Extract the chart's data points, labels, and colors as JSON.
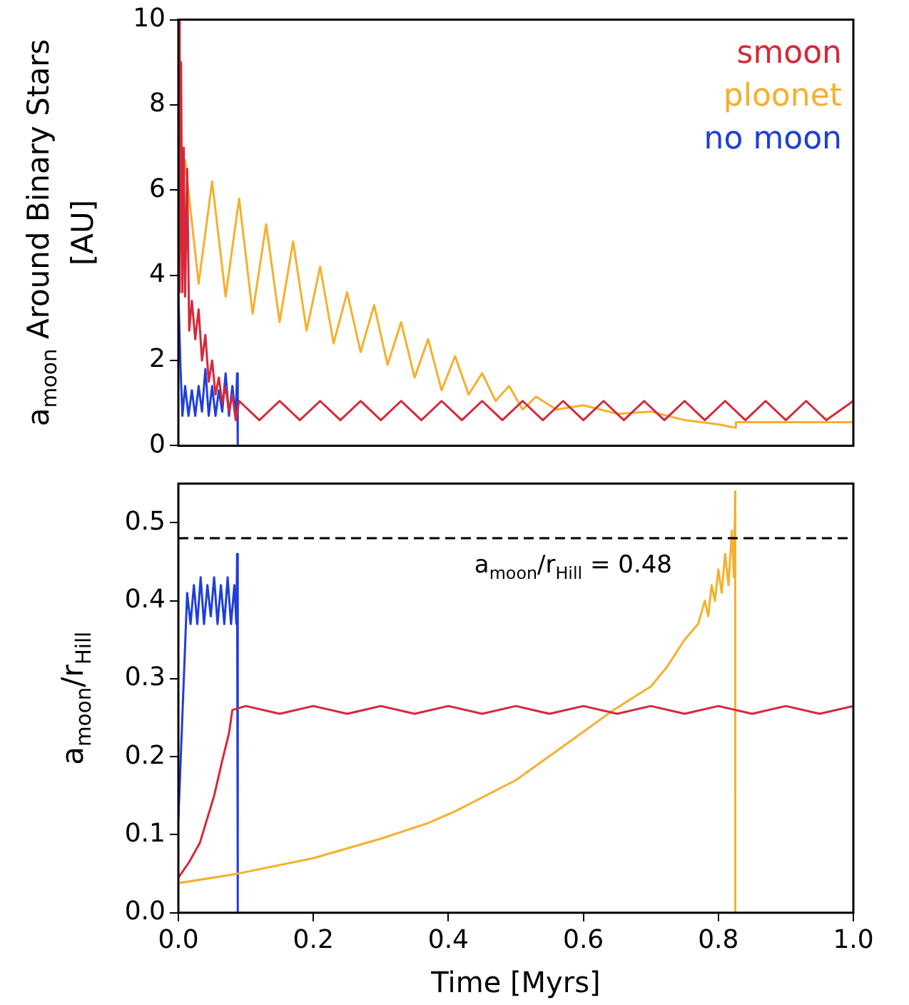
{
  "chart_data": [
    {
      "type": "line",
      "ylabel": "a$_{moon}$ Around Binary Stars [AU]",
      "xlim": [
        0,
        1
      ],
      "ylim": [
        0,
        10
      ],
      "yticks": [
        0,
        2,
        4,
        6,
        8,
        10
      ],
      "tick_labels": "y",
      "grid": false,
      "legend": "top right",
      "series": [
        {
          "name": "smoon",
          "color": "#d62839",
          "x": [
            0,
            0.002,
            0.004,
            0.006,
            0.008,
            0.01,
            0.013,
            0.016,
            0.02,
            0.025,
            0.03,
            0.035,
            0.04,
            0.045,
            0.05,
            0.055,
            0.06,
            0.065,
            0.07,
            0.075,
            0.08,
            0.085,
            0.09,
            0.12,
            0.15,
            0.18,
            0.21,
            0.24,
            0.27,
            0.3,
            0.33,
            0.36,
            0.39,
            0.42,
            0.45,
            0.48,
            0.51,
            0.54,
            0.57,
            0.6,
            0.63,
            0.66,
            0.69,
            0.72,
            0.75,
            0.78,
            0.81,
            0.84,
            0.87,
            0.9,
            0.93,
            0.96,
            1.0
          ],
          "values": [
            10,
            3.6,
            9,
            3.6,
            7,
            3.5,
            6.5,
            2.7,
            3.4,
            2.5,
            3.2,
            2.0,
            2.6,
            1.5,
            2.0,
            1.2,
            1.6,
            1.0,
            1.4,
            0.8,
            1.2,
            0.6,
            1.05,
            0.6,
            1.05,
            0.6,
            1.05,
            0.6,
            1.05,
            0.6,
            1.05,
            0.6,
            1.05,
            0.6,
            1.05,
            0.6,
            1.05,
            0.6,
            1.05,
            0.6,
            1.05,
            0.6,
            1.05,
            0.6,
            1.05,
            0.6,
            1.05,
            0.6,
            1.05,
            0.6,
            1.05,
            0.6,
            1.05
          ]
        },
        {
          "name": "ploonet",
          "color": "#f5b02e",
          "x": [
            0,
            0.01,
            0.03,
            0.05,
            0.07,
            0.09,
            0.11,
            0.13,
            0.15,
            0.17,
            0.19,
            0.21,
            0.23,
            0.25,
            0.27,
            0.29,
            0.31,
            0.33,
            0.35,
            0.37,
            0.39,
            0.41,
            0.43,
            0.45,
            0.47,
            0.49,
            0.51,
            0.53,
            0.56,
            0.6,
            0.65,
            0.7,
            0.75,
            0.8,
            0.825,
            0.826,
            1.0
          ],
          "values": [
            4.0,
            6.7,
            3.8,
            6.2,
            3.5,
            5.8,
            3.1,
            5.2,
            2.9,
            4.8,
            2.7,
            4.2,
            2.4,
            3.6,
            2.2,
            3.3,
            1.9,
            2.9,
            1.6,
            2.5,
            1.3,
            2.1,
            1.2,
            1.7,
            1.05,
            1.4,
            0.85,
            1.15,
            0.85,
            0.95,
            0.75,
            0.8,
            0.6,
            0.5,
            0.42,
            0.55,
            0.55
          ]
        },
        {
          "name": "no moon",
          "color": "#1f3fd8",
          "x": [
            0,
            0.003,
            0.006,
            0.01,
            0.015,
            0.02,
            0.025,
            0.03,
            0.035,
            0.04,
            0.045,
            0.05,
            0.055,
            0.06,
            0.065,
            0.07,
            0.075,
            0.08,
            0.085,
            0.087,
            0.088
          ],
          "values": [
            3.6,
            1.9,
            0.7,
            1.4,
            0.7,
            1.3,
            0.7,
            1.4,
            0.8,
            1.8,
            0.7,
            1.4,
            0.7,
            1.3,
            0.8,
            1.7,
            0.7,
            1.4,
            0.7,
            1.7,
            0
          ]
        }
      ]
    },
    {
      "type": "line",
      "xlabel": "Time [Myrs]",
      "ylabel": "a$_{moon}$/r$_{Hill}$",
      "xlim": [
        0,
        1
      ],
      "xticks": [
        {
          "value": 0,
          "label": "0.0"
        },
        {
          "value": 0.2,
          "label": "0.2"
        },
        {
          "value": 0.4,
          "label": "0.4"
        },
        {
          "value": 0.6,
          "label": "0.6"
        },
        {
          "value": 0.8,
          "label": "0.8"
        },
        {
          "value": 1,
          "label": "1.0"
        }
      ],
      "ylim": [
        0,
        0.55
      ],
      "yticks": [
        {
          "value": 0,
          "label": "0.0"
        },
        {
          "value": 0.1,
          "label": "0.1"
        },
        {
          "value": 0.2,
          "label": "0.2"
        },
        {
          "value": 0.3,
          "label": "0.3"
        },
        {
          "value": 0.4,
          "label": "0.4"
        },
        {
          "value": 0.5,
          "label": "0.5"
        }
      ],
      "grid": false,
      "ref_lines": [
        {
          "axis": "y",
          "value": 0.48,
          "label": "a$_{moon}$/r$_{Hill}$ = 0.48",
          "color": "#000000",
          "line_style": "dashed"
        }
      ],
      "series": [
        {
          "color": "#d62839",
          "x": [
            0,
            0.016,
            0.032,
            0.053,
            0.065,
            0.075,
            0.08,
            0.1,
            0.15,
            0.2,
            0.25,
            0.3,
            0.35,
            0.4,
            0.45,
            0.5,
            0.55,
            0.6,
            0.65,
            0.7,
            0.75,
            0.8,
            0.85,
            0.9,
            0.95,
            1.0
          ],
          "values": [
            0.045,
            0.065,
            0.09,
            0.15,
            0.195,
            0.23,
            0.26,
            0.265,
            0.255,
            0.265,
            0.255,
            0.265,
            0.255,
            0.265,
            0.255,
            0.265,
            0.255,
            0.265,
            0.255,
            0.265,
            0.255,
            0.265,
            0.255,
            0.265,
            0.255,
            0.265
          ]
        },
        {
          "color": "#f5b02e",
          "x": [
            0,
            0.087,
            0.2,
            0.3,
            0.37,
            0.41,
            0.5,
            0.6,
            0.645,
            0.7,
            0.723,
            0.75,
            0.77,
            0.78,
            0.785,
            0.79,
            0.795,
            0.8,
            0.805,
            0.81,
            0.815,
            0.82,
            0.823,
            0.825,
            0.8251
          ],
          "values": [
            0.038,
            0.05,
            0.07,
            0.095,
            0.115,
            0.13,
            0.17,
            0.232,
            0.26,
            0.29,
            0.314,
            0.35,
            0.37,
            0.4,
            0.38,
            0.42,
            0.4,
            0.44,
            0.41,
            0.46,
            0.42,
            0.49,
            0.43,
            0.54,
            0
          ]
        },
        {
          "color": "#1f3fd8",
          "x": [
            0,
            0.013,
            0.018,
            0.023,
            0.028,
            0.033,
            0.038,
            0.043,
            0.048,
            0.053,
            0.058,
            0.063,
            0.068,
            0.073,
            0.078,
            0.083,
            0.086,
            0.087,
            0.088
          ],
          "values": [
            0.12,
            0.41,
            0.37,
            0.42,
            0.37,
            0.43,
            0.37,
            0.42,
            0.38,
            0.43,
            0.37,
            0.42,
            0.37,
            0.43,
            0.37,
            0.42,
            0.37,
            0.46,
            0
          ]
        }
      ]
    }
  ]
}
